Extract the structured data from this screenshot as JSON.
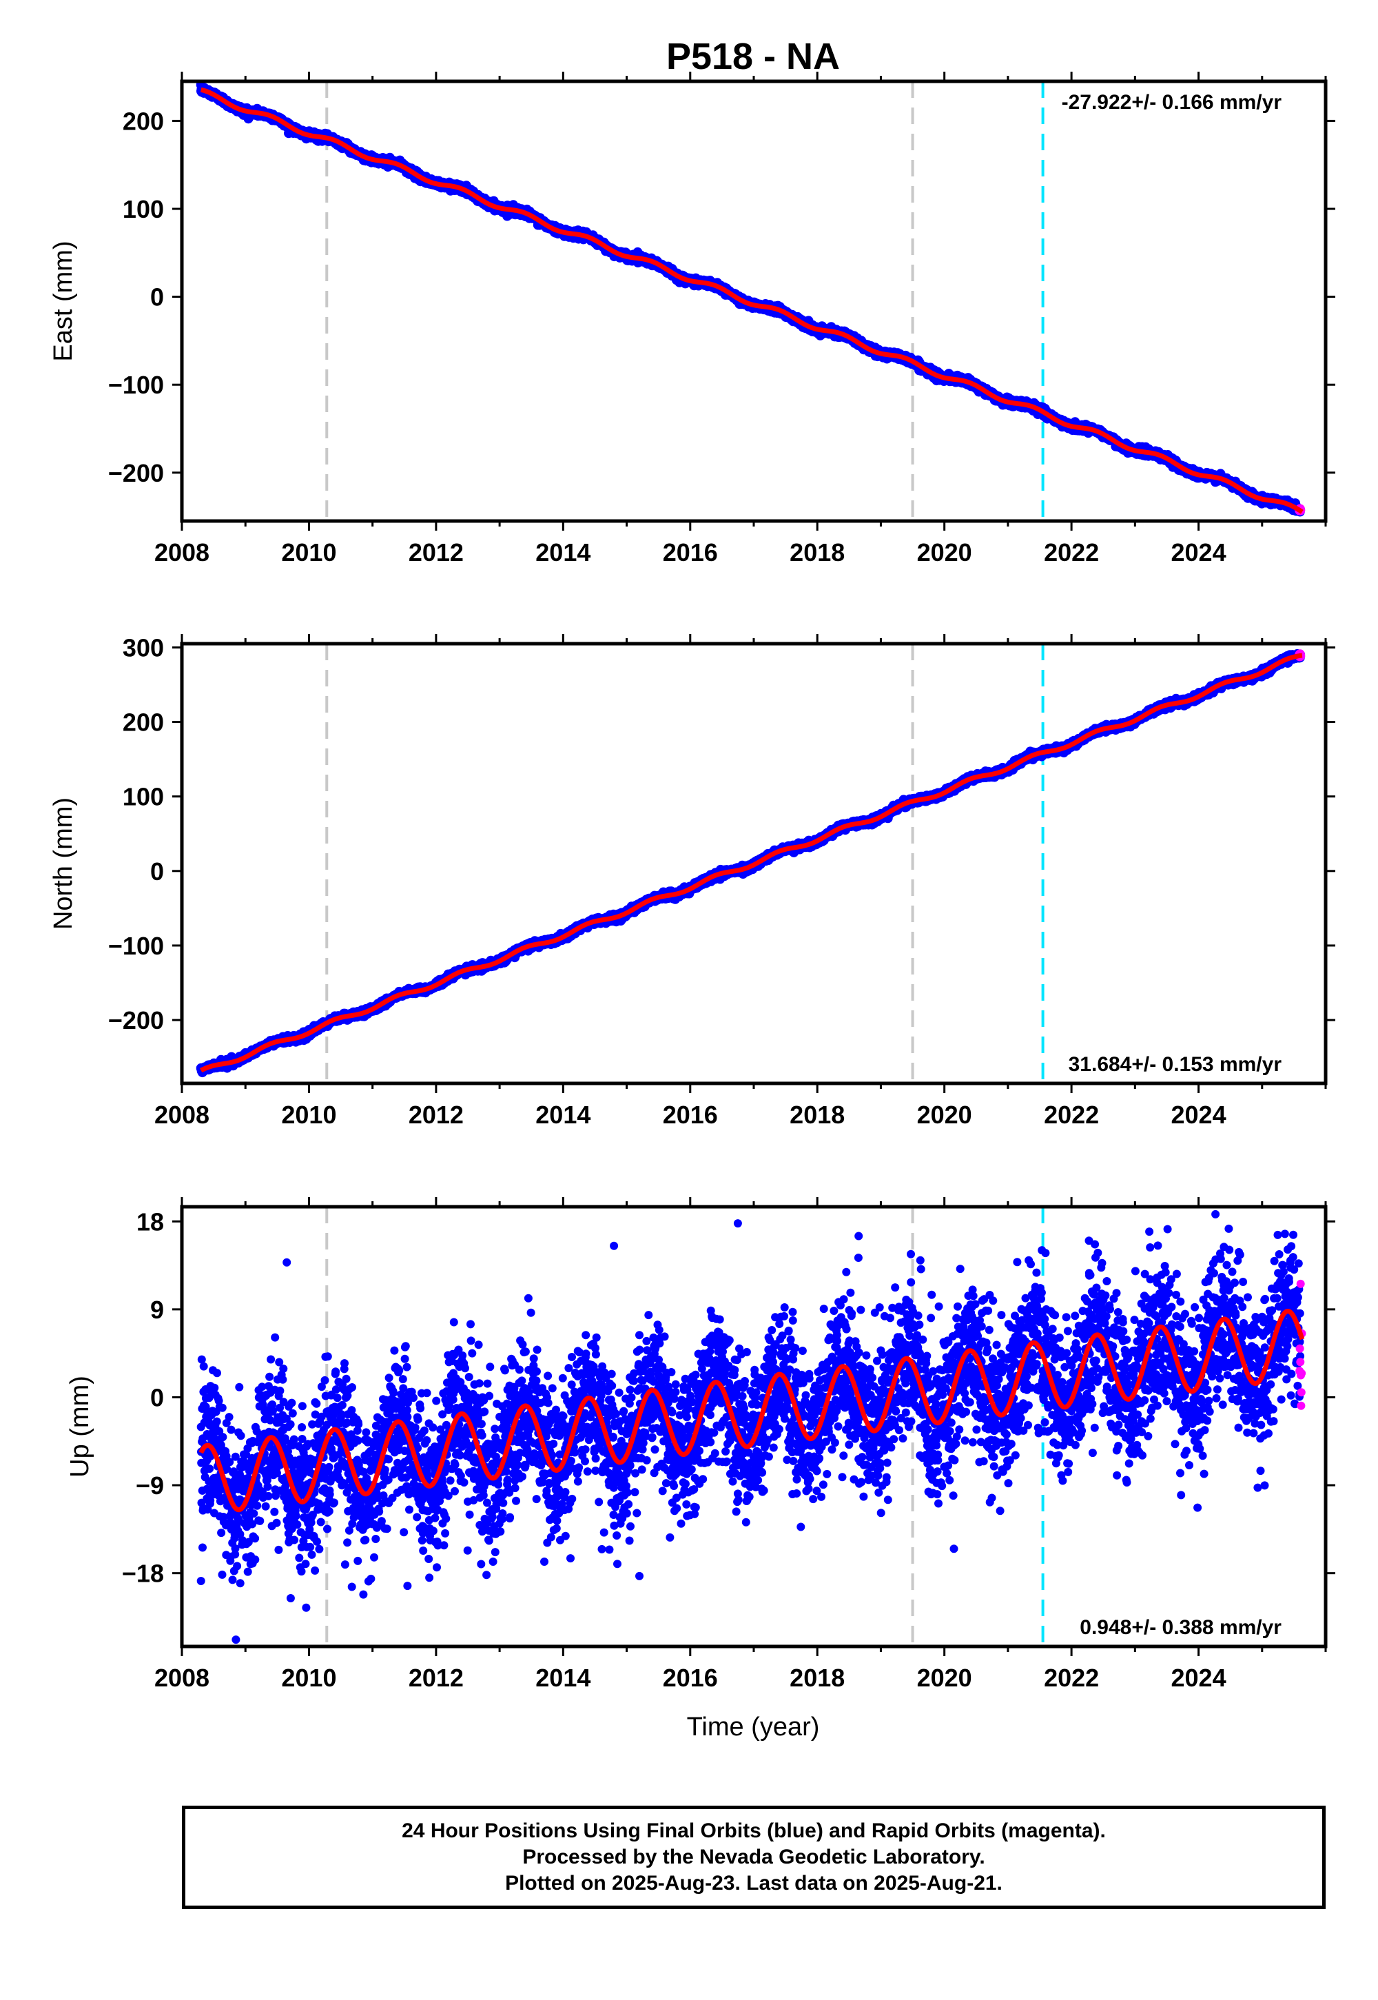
{
  "title": "P518 - NA",
  "x_axis_label": "Time (year)",
  "colors": {
    "final_orbits": "#0000ff",
    "rapid_orbits": "#ff00ff",
    "model": "#ff0000",
    "equipment_change": "#c8c8c8",
    "earthquake": "#00e5ff"
  },
  "chart_data": [
    {
      "type": "scatter",
      "component": "east",
      "ylabel": "East (mm)",
      "xlim": [
        2008.0,
        2026.0
      ],
      "ylim": [
        -255,
        245
      ],
      "xticks": [
        2008,
        2010,
        2012,
        2014,
        2016,
        2018,
        2020,
        2022,
        2024
      ],
      "yticks": [
        -200,
        -100,
        0,
        100,
        200
      ],
      "yticklabels": [
        "−200",
        "−100",
        "0",
        "100",
        "200"
      ],
      "rate_text": "-27.922+/- 0.166 mm/yr",
      "rate_position": "top-right",
      "grid": false,
      "start": {
        "x": 2008.3,
        "y": 233
      },
      "end": {
        "x": 2025.63,
        "y": -245
      },
      "seasonal_amplitude": 3,
      "noise": 2,
      "outliers": [],
      "rapid_points": 4
    },
    {
      "type": "scatter",
      "component": "north",
      "ylabel": "North (mm)",
      "xlim": [
        2008.0,
        2026.0
      ],
      "ylim": [
        -285,
        305
      ],
      "xticks": [
        2008,
        2010,
        2012,
        2014,
        2016,
        2018,
        2020,
        2022,
        2024
      ],
      "yticks": [
        -200,
        -100,
        0,
        100,
        200,
        300
      ],
      "yticklabels": [
        "−200",
        "−100",
        "0",
        "100",
        "200",
        "300"
      ],
      "rate_text": "31.684+/- 0.153 mm/yr",
      "rate_position": "bottom-right",
      "grid": false,
      "start": {
        "x": 2008.3,
        "y": -270
      },
      "end": {
        "x": 2025.63,
        "y": 289
      },
      "seasonal_amplitude": 3,
      "noise": 2,
      "outliers": [],
      "rapid_points": 4
    },
    {
      "type": "scatter",
      "component": "up",
      "ylabel": "Up (mm)",
      "xlim": [
        2008.0,
        2026.0
      ],
      "ylim": [
        -25.5,
        19.5
      ],
      "xticks": [
        2008,
        2010,
        2012,
        2014,
        2016,
        2018,
        2020,
        2022,
        2024
      ],
      "yticks": [
        -18,
        -9,
        0,
        9,
        18
      ],
      "yticklabels": [
        "−18",
        "−9",
        "0",
        "9",
        "18"
      ],
      "rate_text": "0.948+/- 0.388 mm/yr",
      "rate_position": "bottom-right",
      "grid": false,
      "start": {
        "x": 2008.3,
        "y": -8.5
      },
      "end": {
        "x": 2025.63,
        "y": 5.5
      },
      "seasonal_amplitude": 3.5,
      "noise": 3.8,
      "outliers": [
        {
          "x": 2008.3,
          "y": -18.8
        },
        {
          "x": 2008.85,
          "y": -24.8
        },
        {
          "x": 2009.65,
          "y": 13.8
        },
        {
          "x": 2014.8,
          "y": 15.5
        },
        {
          "x": 2016.75,
          "y": 17.8
        },
        {
          "x": 2018.65,
          "y": 16.5
        },
        {
          "x": 2015.2,
          "y": -18.3
        },
        {
          "x": 2020.15,
          "y": -15.5
        },
        {
          "x": 2011.55,
          "y": -19.3
        }
      ],
      "rapid_points": 10
    }
  ],
  "reference_lines": {
    "equipment_changes": [
      2010.28,
      2019.5
    ],
    "earthquakes": [
      2021.55
    ]
  },
  "footer": {
    "line1": "24 Hour Positions Using Final Orbits (blue) and Rapid Orbits (magenta).",
    "line2": "Processed by the Nevada Geodetic Laboratory.",
    "line3": "Plotted on 2025-Aug-23. Last data on 2025-Aug-21."
  }
}
